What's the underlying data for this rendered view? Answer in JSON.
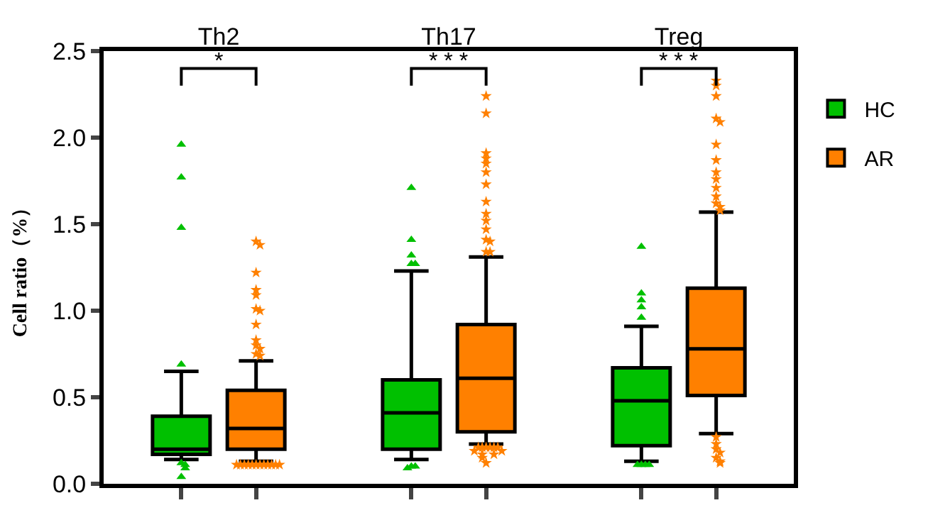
{
  "chart_data": {
    "type": "box",
    "categories": [
      "Th2",
      "Th17",
      "Treg"
    ],
    "ylabel": "Cell ratio（%）",
    "ylim": [
      0,
      2.5
    ],
    "yticks": [
      {
        "value": 0,
        "label": "0.0"
      },
      0.5,
      {
        "value": 1,
        "label": "1.0"
      },
      1.5,
      {
        "value": 2,
        "label": "2.0"
      },
      2.5
    ],
    "legend": "right",
    "series": [
      {
        "name": "HC",
        "color": "#00c000",
        "marker": "triangle",
        "boxes": [
          {
            "low": 0.14,
            "q1": 0.17,
            "median": 0.2,
            "q3": 0.39,
            "high": 0.65,
            "outliers": [
              1.96,
              1.77,
              1.48,
              0.69,
              0.12,
              0.11,
              0.09,
              0.04
            ]
          },
          {
            "low": 0.14,
            "q1": 0.2,
            "median": 0.41,
            "q3": 0.6,
            "high": 1.23,
            "outliers": [
              1.71,
              1.41,
              1.32,
              1.27,
              1.27,
              0.1,
              0.1,
              0.09
            ]
          },
          {
            "low": 0.13,
            "q1": 0.22,
            "median": 0.48,
            "q3": 0.67,
            "high": 0.91,
            "outliers": [
              1.37,
              1.1,
              1.06,
              1.02,
              0.96,
              0.11,
              0.11,
              0.11,
              0.11
            ]
          }
        ]
      },
      {
        "name": "AR",
        "color": "#ff8000",
        "marker": "star",
        "boxes": [
          {
            "low": 0.13,
            "q1": 0.2,
            "median": 0.32,
            "q3": 0.54,
            "high": 0.71,
            "outliers": [
              1.4,
              1.38,
              1.22,
              1.12,
              1.09,
              1.01,
              1.0,
              0.92,
              0.83,
              0.8,
              0.78,
              0.75,
              0.74,
              0.11,
              0.11,
              0.11,
              0.11,
              0.11,
              0.11,
              0.11,
              0.11,
              0.11,
              0.11,
              0.11,
              0.11
            ]
          },
          {
            "low": 0.23,
            "q1": 0.3,
            "median": 0.61,
            "q3": 0.92,
            "high": 1.31,
            "outliers": [
              2.24,
              2.14,
              1.91,
              1.88,
              1.85,
              1.8,
              1.73,
              1.63,
              1.56,
              1.52,
              1.47,
              1.41,
              1.4,
              1.34,
              1.34,
              0.21,
              0.21,
              0.21,
              0.21,
              0.21,
              0.21,
              0.19,
              0.19,
              0.17,
              0.17,
              0.15,
              0.12
            ]
          },
          {
            "low": 0.29,
            "q1": 0.51,
            "median": 0.78,
            "q3": 1.13,
            "high": 1.57,
            "outliers": [
              2.33,
              2.3,
              2.24,
              2.11,
              2.09,
              1.96,
              1.87,
              1.8,
              1.76,
              1.71,
              1.66,
              1.62,
              1.6,
              1.58,
              0.27,
              0.23,
              0.2,
              0.18,
              0.15,
              0.13,
              0.12
            ]
          }
        ]
      }
    ],
    "annotations": [
      "*",
      "* * *",
      "* * *"
    ]
  }
}
